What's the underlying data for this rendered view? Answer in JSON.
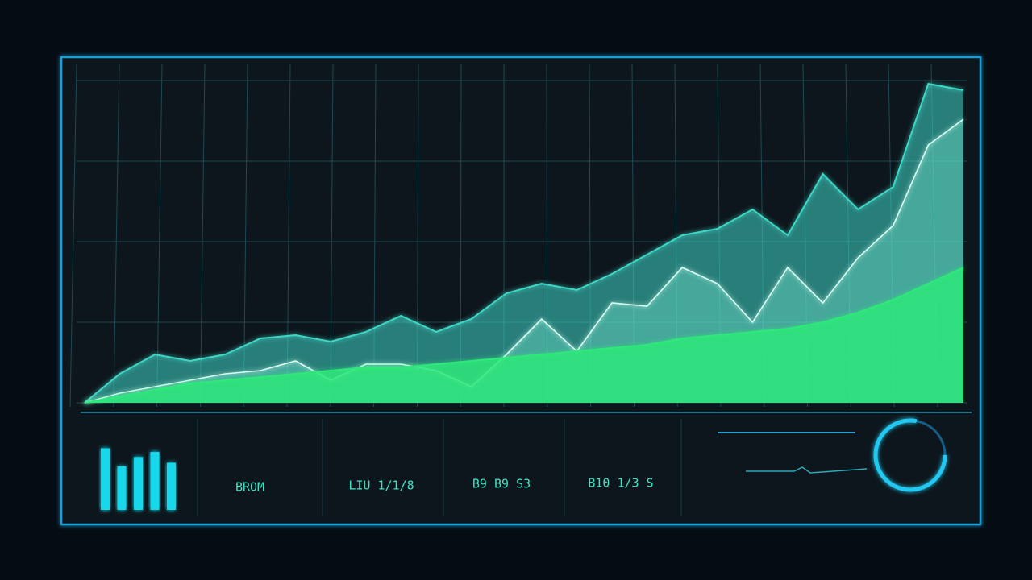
{
  "chart_data": [
    {
      "type": "area",
      "x": [
        0,
        4,
        8,
        12,
        16,
        20,
        24,
        28,
        32,
        36,
        40,
        44,
        48,
        52,
        56,
        60,
        64,
        68,
        72,
        76,
        80,
        84,
        88,
        92,
        96,
        100
      ],
      "xlim": [
        0,
        100
      ],
      "ylim": [
        0,
        100
      ],
      "yticks": [
        0,
        25,
        50,
        75,
        100
      ],
      "grid": true,
      "series": [
        {
          "color": "#3fd6c6",
          "values": [
            0,
            9,
            15,
            13,
            15,
            20,
            21,
            19,
            22,
            27,
            22,
            26,
            34,
            37,
            35,
            40,
            46,
            52,
            54,
            60,
            52,
            71,
            60,
            67,
            99,
            97
          ]
        },
        {
          "color": "#7ff3dc",
          "values": [
            0,
            3,
            5,
            7,
            9,
            10,
            13,
            7,
            12,
            12,
            10,
            5,
            15,
            26,
            16,
            31,
            30,
            42,
            37,
            25,
            42,
            31,
            45,
            55,
            80,
            88
          ]
        },
        {
          "color": "#2ee87a",
          "values": [
            0,
            2,
            4,
            6,
            7,
            8,
            9,
            10,
            11,
            11,
            12,
            13,
            14,
            15,
            16,
            17,
            18,
            20,
            21,
            22,
            23,
            25,
            28,
            32,
            37,
            42
          ]
        }
      ]
    },
    {
      "type": "bar",
      "categories": [
        null,
        null,
        null,
        null,
        null
      ],
      "values": [
        85,
        60,
        73,
        80,
        65
      ],
      "color": "#19d8ea",
      "ylim": [
        0,
        100
      ]
    }
  ],
  "panels": [
    {
      "value": "BROM"
    },
    {
      "value": "LIU 1/1/8"
    },
    {
      "value": "B9 B9 S3"
    },
    {
      "value": "B10 1/3 S"
    }
  ]
}
